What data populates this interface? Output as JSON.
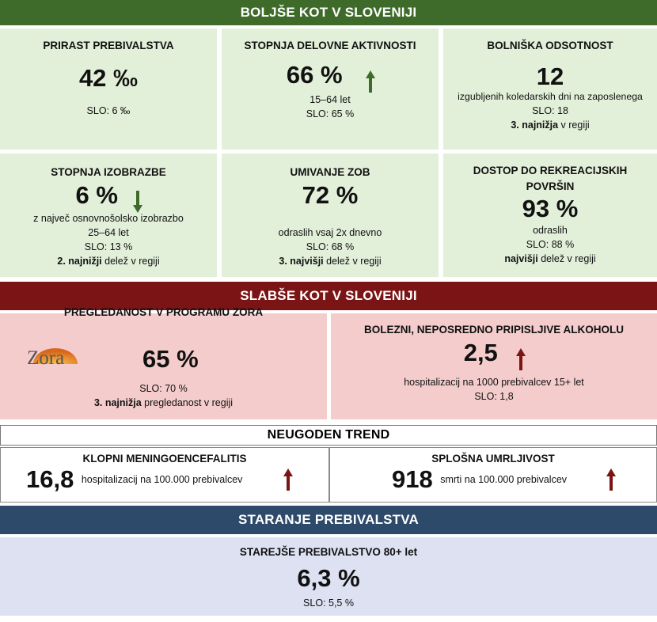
{
  "sections": {
    "better": "BOLJŠE KOT V SLOVENIJI",
    "worse": "SLABŠE KOT V SLOVENIJI",
    "trend": "NEUGODEN TREND",
    "aging": "STARANJE PREBIVALSTVA"
  },
  "better_cards": [
    {
      "title": "PRIRAST PREBIVALSTVA",
      "value": "42 ‰",
      "slo": "SLO: 6 ‰"
    },
    {
      "title": "STOPNJA DELOVNE AKTIVNOSTI",
      "value": "66 %",
      "sub": "15–64 let",
      "slo": "SLO: 65 %",
      "arrow": "up"
    },
    {
      "title": "BOLNIŠKA ODSOTNOST",
      "value": "12",
      "sub": "izgubljenih koledarskih dni na zaposlenega",
      "slo": "SLO: 18",
      "rank_bold": "3. najnižja",
      "rank_rest": " v regiji"
    },
    {
      "title": "STOPNJA IZOBRAZBE",
      "value": "6 %",
      "sub": "z največ osnovnošolsko izobrazbo",
      "sub2": "25–64 let",
      "slo": "SLO: 13 %",
      "rank_bold": "2. najnižji",
      "rank_rest": " delež v regiji",
      "arrow": "down"
    },
    {
      "title": "UMIVANJE ZOB",
      "value": "72 %",
      "sub": "odraslih  vsaj 2x dnevno",
      "slo": "SLO: 68 %",
      "rank_bold": "3. najvišji",
      "rank_rest": " delež v regiji"
    },
    {
      "title": "DOSTOP DO REKREACIJSKIH",
      "title2": "POVRŠIN",
      "value": "93 %",
      "sub": "odraslih",
      "slo": "SLO: 88 %",
      "rank_bold": "najvišji",
      "rank_rest": " delež v regiji"
    }
  ],
  "worse_cards": [
    {
      "title": "PREGLEDANOST V PROGRAMU  ZORA",
      "logo": "Zora",
      "value": "65 %",
      "slo": "SLO: 70 %",
      "rank_bold": "3. najnižja",
      "rank_rest": " pregledanost v regiji"
    },
    {
      "title": "BOLEZNI, NEPOSREDNO PRIPISLJIVE ALKOHOLU",
      "value": "2,5",
      "sub": "hospitalizacij na 1000 prebivalcev 15+ let",
      "slo": "SLO: 1,8",
      "arrow": "up"
    }
  ],
  "trend_cards": [
    {
      "title": "KLOPNI MENINGOENCEFALITIS",
      "value": "16,8",
      "unit": "hospitalizacij na 100.000 prebivalcev",
      "arrow": "up"
    },
    {
      "title": "SPLOŠNA UMRLJIVOST",
      "value": "918",
      "unit": "smrti na 100.000 prebivalcev",
      "arrow": "up"
    }
  ],
  "aging_card": {
    "title": "STAREJŠE PREBIVALSTVO 80+ let",
    "value": "6,3 %",
    "slo": "SLO: 5,5 %"
  },
  "colors": {
    "green_band": "#3f6b2a",
    "red_band": "#7b1414",
    "blue_band": "#2e4a6b",
    "arrow_green": "#3f6b2a",
    "arrow_red": "#7b1414"
  }
}
